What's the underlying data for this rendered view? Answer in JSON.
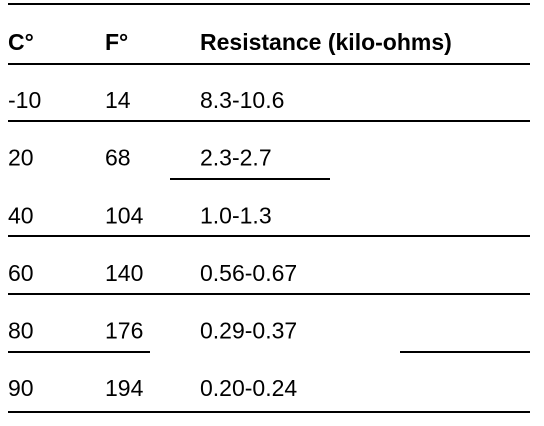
{
  "table": {
    "header": [
      "C°",
      "F°",
      "Resistance (kilo-ohms)"
    ],
    "rows": [
      [
        "-10",
        "14",
        "8.3-10.6"
      ],
      [
        "20",
        "68",
        "2.3-2.7"
      ],
      [
        "40",
        "104",
        "1.0-1.3"
      ],
      [
        "60",
        "140",
        "0.56-0.67"
      ],
      [
        "80",
        "176",
        "0.29-0.37"
      ],
      [
        "90",
        "194",
        "0.20-0.24"
      ]
    ]
  }
}
